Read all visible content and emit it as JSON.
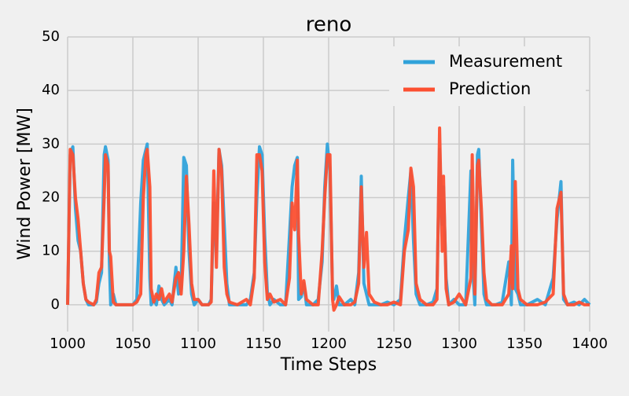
{
  "chart_data": {
    "type": "line",
    "title": "reno",
    "xlabel": "Time Steps",
    "ylabel": "Wind Power [MW]",
    "x": [
      1000,
      1002,
      1004,
      1006,
      1008,
      1010,
      1012,
      1014,
      1016,
      1020,
      1022,
      1024,
      1026,
      1028,
      1029,
      1031,
      1032,
      1033,
      1035,
      1037,
      1040,
      1045,
      1050,
      1053,
      1056,
      1058,
      1060,
      1061,
      1063,
      1064,
      1066,
      1068,
      1070,
      1072,
      1074,
      1078,
      1080,
      1083,
      1085,
      1087,
      1089,
      1091,
      1093,
      1095,
      1097,
      1100,
      1103,
      1108,
      1110,
      1112,
      1114,
      1116,
      1118,
      1120,
      1122,
      1124,
      1130,
      1137,
      1140,
      1143,
      1145,
      1147,
      1149,
      1151,
      1153,
      1155,
      1158,
      1163,
      1167,
      1170,
      1172,
      1174,
      1176,
      1177,
      1179,
      1181,
      1183,
      1188,
      1192,
      1195,
      1197,
      1199,
      1201,
      1203,
      1204,
      1206,
      1208,
      1212,
      1217,
      1220,
      1223,
      1225,
      1227,
      1229,
      1231,
      1235,
      1240,
      1245,
      1250,
      1255,
      1258,
      1261,
      1263,
      1265,
      1267,
      1270,
      1275,
      1280,
      1283,
      1285,
      1287,
      1288,
      1290,
      1292,
      1296,
      1300,
      1305,
      1309,
      1310,
      1312,
      1314,
      1315,
      1317,
      1319,
      1321,
      1325,
      1328,
      1333,
      1338,
      1340,
      1341,
      1343,
      1345,
      1347,
      1352,
      1360,
      1366,
      1372,
      1375,
      1378,
      1380,
      1383,
      1388,
      1392,
      1396,
      1400
    ],
    "series": [
      {
        "name": "Measurement",
        "color": "#30a2da",
        "values": [
          0,
          28,
          29.5,
          18,
          12,
          10,
          4,
          1,
          0,
          0,
          0.5,
          4,
          6,
          28,
          29.5,
          27,
          8,
          0,
          2,
          0,
          0,
          0,
          0,
          1,
          19,
          27,
          29,
          30,
          5,
          0,
          1,
          0,
          3.5,
          1,
          0,
          1,
          0,
          7,
          2,
          3,
          27.5,
          26,
          10,
          2,
          0,
          1,
          0,
          0,
          1,
          19,
          10,
          29,
          26,
          15,
          4,
          0,
          0,
          0,
          1,
          6,
          20,
          29.5,
          28,
          13,
          2.5,
          0,
          1,
          0,
          0,
          13,
          22,
          26,
          27.5,
          1,
          1.5,
          4,
          0,
          0,
          1,
          8,
          22,
          30,
          25,
          2,
          1,
          3.5,
          0,
          0,
          1,
          0,
          6,
          24,
          4,
          2,
          0,
          0,
          0,
          0.5,
          0,
          1,
          12,
          20,
          25,
          12,
          2,
          0,
          0,
          0.5,
          3,
          29,
          15,
          22,
          5,
          0,
          1,
          0,
          0,
          25,
          8,
          0,
          28,
          29,
          15,
          2,
          0,
          0,
          0,
          0.5,
          8,
          0,
          27,
          3,
          2,
          0,
          0,
          1,
          0,
          5,
          16,
          23,
          1,
          0,
          0.5,
          0,
          1,
          0
        ]
      },
      {
        "name": "Prediction",
        "color": "#fc4f30",
        "values": [
          0,
          29,
          28,
          20,
          16,
          10,
          4,
          1,
          0.5,
          0,
          1,
          6,
          7,
          20,
          28,
          26,
          10,
          9,
          0.5,
          0,
          0,
          0,
          0,
          0.5,
          2,
          20,
          28,
          29,
          22,
          3,
          0.5,
          2,
          1,
          3,
          0.5,
          2,
          0.5,
          5,
          6,
          2,
          10,
          24,
          15,
          4,
          1,
          1,
          0,
          0,
          0.5,
          25,
          7,
          29,
          25,
          7,
          2,
          0.5,
          0,
          1,
          0,
          5,
          28,
          28,
          25,
          8,
          1,
          2,
          0.5,
          1,
          0,
          5,
          19,
          14,
          27,
          13,
          2,
          4.5,
          1,
          0,
          0,
          10,
          20,
          28,
          28,
          1,
          -1,
          0,
          1.5,
          0,
          0,
          0.5,
          4,
          22,
          7,
          13.5,
          2,
          0.5,
          0,
          0,
          0.5,
          0,
          10,
          14,
          25.5,
          22,
          4,
          1,
          0,
          0,
          1,
          33,
          10,
          24,
          3,
          0,
          0.5,
          2,
          0,
          5,
          28,
          2,
          26,
          27,
          18,
          6,
          1,
          0,
          0,
          0,
          2,
          11,
          3,
          23,
          3,
          1,
          0,
          0,
          0.5,
          2,
          18,
          21,
          2,
          0,
          0,
          0.5,
          0,
          0
        ]
      }
    ],
    "xlim": [
      1000,
      1400
    ],
    "xticks": [
      1000,
      1050,
      1100,
      1150,
      1200,
      1250,
      1300,
      1350,
      1400
    ],
    "ylim": [
      -5,
      50
    ],
    "yticks": [
      0,
      10,
      20,
      30,
      40,
      50
    ],
    "grid": true,
    "legend": "upper right"
  }
}
